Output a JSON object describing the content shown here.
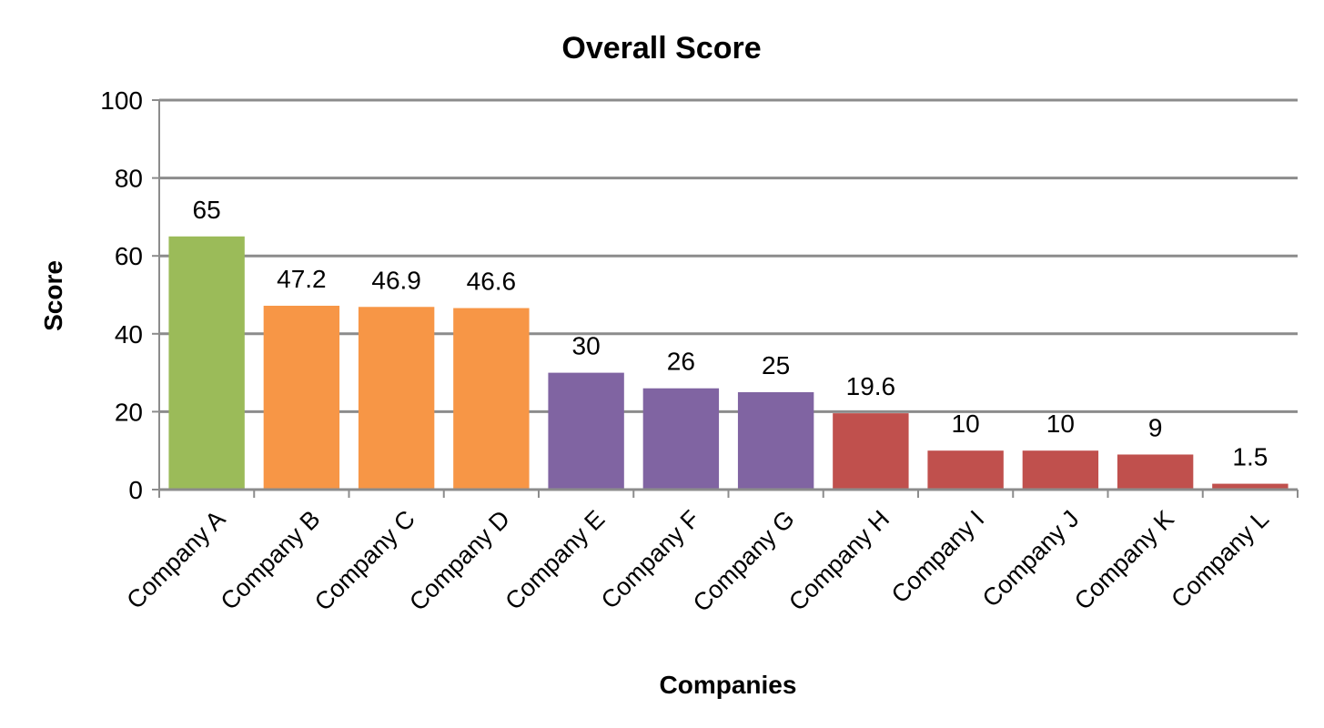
{
  "chart_data": {
    "type": "bar",
    "title": "Overall Score",
    "xlabel": "Companies",
    "ylabel": "Score",
    "ylim": [
      0,
      100
    ],
    "yticks": [
      0,
      20,
      40,
      60,
      80,
      100
    ],
    "grid": true,
    "legend": "none",
    "categories": [
      "Company A",
      "Company B",
      "Company C",
      "Company D",
      "Company E",
      "Company F",
      "Company G",
      "Company H",
      "Company I",
      "Company J",
      "Company K",
      "Company L"
    ],
    "values": [
      65,
      47.2,
      46.9,
      46.6,
      30,
      26,
      25,
      19.6,
      10,
      10,
      9,
      1.5
    ],
    "data_labels": [
      "65",
      "47.2",
      "46.9",
      "46.6",
      "30",
      "26",
      "25",
      "19.6",
      "10",
      "10",
      "9",
      "1.5"
    ],
    "bar_colors": [
      "#9BBB59",
      "#F79646",
      "#F79646",
      "#F79646",
      "#8064A2",
      "#8064A2",
      "#8064A2",
      "#C0504D",
      "#C0504D",
      "#C0504D",
      "#C0504D",
      "#C0504D"
    ],
    "gridline_color": "#8C8C8C",
    "axis_color": "#8C8C8C"
  }
}
